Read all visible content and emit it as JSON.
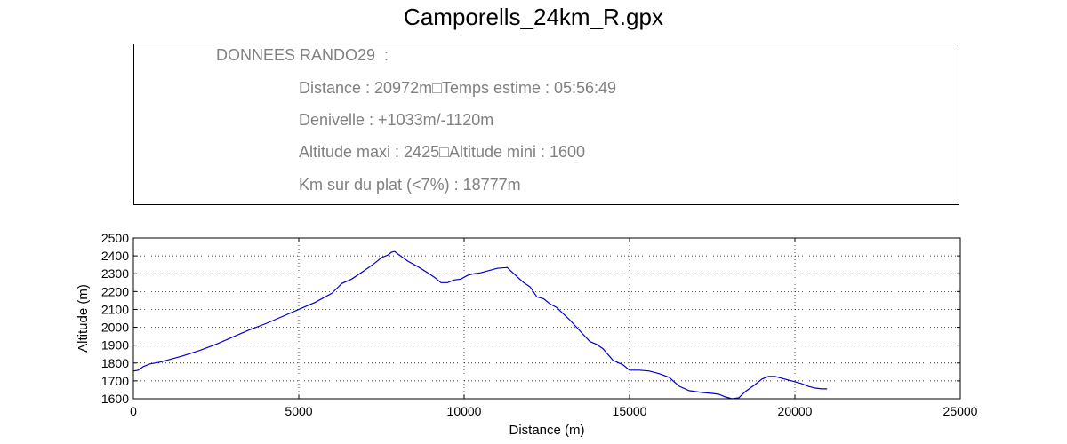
{
  "title": "Camporells_24km_R.gpx",
  "info": {
    "heading": "DONNEES RANDO29  :",
    "distance_line": "Distance : 20972m□Temps estime : 05:56:49",
    "denivelle_line": "Denivelle : +1033m/-1120m",
    "altitude_line": "Altitude maxi : 2425□Altitude mini : 1600",
    "plat_line": "Km sur du plat (<7%) : 18777m"
  },
  "chart_data": {
    "type": "line",
    "xlabel": "Distance (m)",
    "ylabel": "Altitude (m)",
    "xlim": [
      0,
      25000
    ],
    "ylim": [
      1600,
      2500
    ],
    "xticks": [
      0,
      5000,
      10000,
      15000,
      20000,
      25000
    ],
    "yticks": [
      1600,
      1700,
      1800,
      1900,
      2000,
      2100,
      2200,
      2300,
      2400,
      2500
    ],
    "grid": true,
    "line_color": "#0000cc",
    "series": [
      {
        "x": [
          0,
          150,
          300,
          500,
          800,
          1000,
          1500,
          2000,
          2500,
          3000,
          3500,
          4000,
          4500,
          5000,
          5500,
          6000,
          6300,
          6600,
          7000,
          7300,
          7500,
          7700,
          7800,
          7900,
          8000,
          8300,
          8600,
          8900,
          9100,
          9300,
          9500,
          9700,
          9900,
          10100,
          10300,
          10500,
          10800,
          11000,
          11300,
          11500,
          11800,
          12000,
          12200,
          12400,
          12600,
          12800,
          13000,
          13200,
          13400,
          13600,
          13800,
          14000,
          14200,
          14500,
          14800,
          15000,
          15300,
          15600,
          15900,
          16200,
          16500,
          16800,
          17200,
          17500,
          17700,
          17900,
          18100,
          18300,
          18500,
          18800,
          19000,
          19200,
          19400,
          19600,
          19800,
          20000,
          20200,
          20400,
          20600,
          20800,
          20972
        ],
        "y": [
          1755,
          1760,
          1780,
          1795,
          1805,
          1815,
          1840,
          1870,
          1905,
          1945,
          1985,
          2020,
          2060,
          2100,
          2140,
          2190,
          2245,
          2270,
          2320,
          2360,
          2390,
          2405,
          2420,
          2425,
          2410,
          2370,
          2340,
          2305,
          2280,
          2250,
          2250,
          2265,
          2270,
          2290,
          2300,
          2305,
          2320,
          2330,
          2335,
          2300,
          2250,
          2225,
          2170,
          2160,
          2130,
          2110,
          2075,
          2040,
          2000,
          1960,
          1920,
          1905,
          1880,
          1815,
          1790,
          1760,
          1760,
          1755,
          1740,
          1720,
          1670,
          1645,
          1635,
          1630,
          1625,
          1610,
          1600,
          1605,
          1640,
          1680,
          1710,
          1725,
          1725,
          1715,
          1705,
          1695,
          1685,
          1670,
          1660,
          1655,
          1655
        ]
      }
    ]
  }
}
